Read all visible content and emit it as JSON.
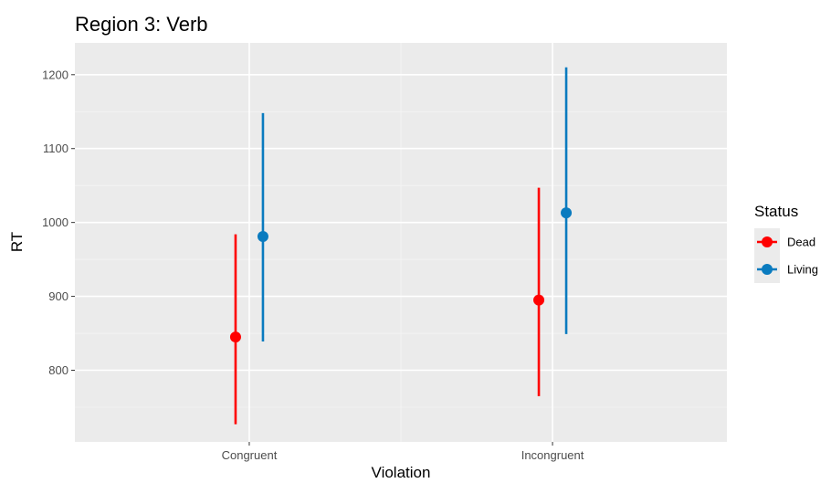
{
  "chart_data": {
    "type": "scatter",
    "title": "Region 3: Verb",
    "xlabel": "Violation",
    "ylabel": "RT",
    "categories": [
      "Congruent",
      "Incongruent"
    ],
    "ylim": [
      703,
      1243
    ],
    "yticks": [
      800,
      900,
      1000,
      1100,
      1200
    ],
    "grid": true,
    "legend": {
      "title": "Status",
      "placement": "right",
      "entries": [
        "Dead",
        "Living"
      ]
    },
    "series": [
      {
        "name": "Dead",
        "color": "#ff0000",
        "points": [
          {
            "x": "Congruent",
            "y": 845,
            "ymin": 727,
            "ymax": 984
          },
          {
            "x": "Incongruent",
            "y": 895,
            "ymin": 765,
            "ymax": 1047
          }
        ]
      },
      {
        "name": "Living",
        "color": "#0a7bbf",
        "points": [
          {
            "x": "Congruent",
            "y": 981,
            "ymin": 839,
            "ymax": 1148
          },
          {
            "x": "Incongruent",
            "y": 1013,
            "ymin": 849,
            "ymax": 1210
          }
        ]
      }
    ]
  }
}
